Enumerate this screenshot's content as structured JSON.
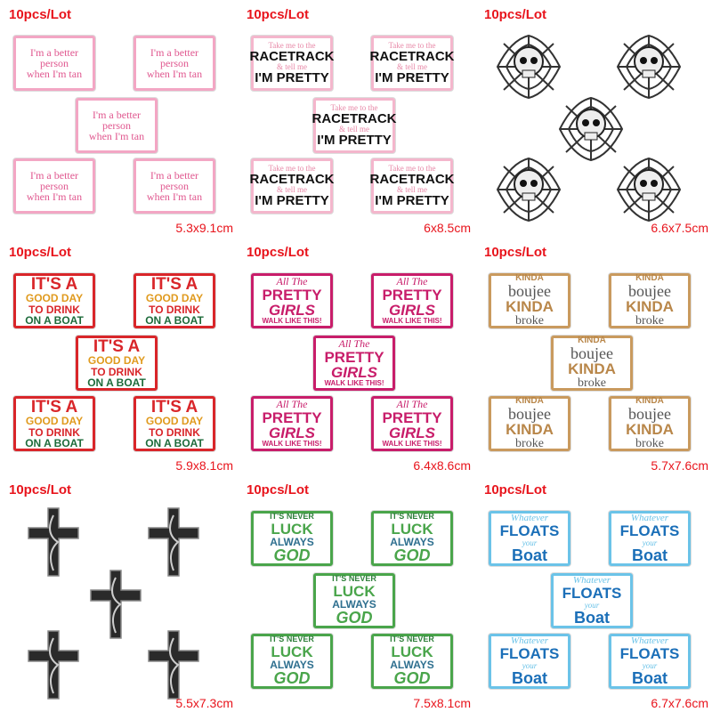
{
  "cells": [
    {
      "lot": "10pcs/Lot",
      "size": "5.3x9.1cm",
      "kind": "text",
      "border": "#f3a6c4",
      "lines": [
        {
          "t": "I'm a better",
          "c": "#e0578f",
          "s": 12
        },
        {
          "t": "person",
          "c": "#e0578f",
          "s": 12
        },
        {
          "t": "when I'm tan",
          "c": "#e0578f",
          "s": 12
        }
      ]
    },
    {
      "lot": "10pcs/Lot",
      "size": "6x8.5cm",
      "kind": "text",
      "border": "#f4b6cc",
      "lines": [
        {
          "t": "Take me to the",
          "c": "#e889a8",
          "s": 9
        },
        {
          "t": "RACETRACK",
          "c": "#111111",
          "s": 15,
          "b": 1
        },
        {
          "t": "& tell me",
          "c": "#e889a8",
          "s": 9
        },
        {
          "t": "I'M PRETTY",
          "c": "#111111",
          "s": 15,
          "b": 1
        }
      ]
    },
    {
      "lot": "10pcs/Lot",
      "size": "6.6x7.5cm",
      "kind": "skull",
      "icon": "skull-spiderweb"
    },
    {
      "lot": "10pcs/Lot",
      "size": "5.9x8.1cm",
      "kind": "text",
      "border": "#d9262a",
      "lines": [
        {
          "t": "IT'S A",
          "c": "#d9262a",
          "s": 19,
          "b": 1
        },
        {
          "t": "GOOD DAY",
          "c": "#e09a1e",
          "s": 12,
          "b": 1
        },
        {
          "t": "TO DRINK",
          "c": "#d9262a",
          "s": 12,
          "b": 1
        },
        {
          "t": "ON A BOAT",
          "c": "#1d6b3a",
          "s": 12,
          "b": 1
        }
      ]
    },
    {
      "lot": "10pcs/Lot",
      "size": "6.4x8.6cm",
      "kind": "text",
      "border": "#c81d6a",
      "lines": [
        {
          "t": "All The",
          "c": "#c81d6a",
          "s": 12,
          "i": 1
        },
        {
          "t": "PRETTY",
          "c": "#c81d6a",
          "s": 17,
          "b": 1
        },
        {
          "t": "GIRLS",
          "c": "#c81d6a",
          "s": 17,
          "b": 1,
          "i": 1
        },
        {
          "t": "WALK LIKE THIS!",
          "c": "#c81d6a",
          "s": 8,
          "b": 1
        }
      ]
    },
    {
      "lot": "10pcs/Lot",
      "size": "5.7x7.6cm",
      "kind": "text",
      "border": "#c99a5e",
      "lines": [
        {
          "t": "KINDA",
          "c": "#b9874a",
          "s": 10,
          "b": 1
        },
        {
          "t": "boujee",
          "c": "#555555",
          "s": 18
        },
        {
          "t": "KINDA",
          "c": "#b9874a",
          "s": 17,
          "b": 1
        },
        {
          "t": "broke",
          "c": "#555555",
          "s": 14
        }
      ]
    },
    {
      "lot": "10pcs/Lot",
      "size": "5.5x7.3cm",
      "kind": "cross",
      "icon": "gothic-cross"
    },
    {
      "lot": "10pcs/Lot",
      "size": "7.5x8.1cm",
      "kind": "text",
      "border": "#4aa54b",
      "lines": [
        {
          "t": "IT'S NEVER",
          "c": "#2e7f3a",
          "s": 9,
          "b": 1
        },
        {
          "t": "LUCK",
          "c": "#4aa54b",
          "s": 17,
          "b": 1
        },
        {
          "t": "ALWAYS",
          "c": "#2e6f8f",
          "s": 12,
          "b": 1
        },
        {
          "t": "GOD",
          "c": "#4aa54b",
          "s": 18,
          "b": 1,
          "i": 1
        }
      ]
    },
    {
      "lot": "10pcs/Lot",
      "size": "6.7x7.6cm",
      "kind": "text",
      "border": "#6bc3e8",
      "lines": [
        {
          "t": "Whatever",
          "c": "#6bc3e8",
          "s": 11,
          "i": 1
        },
        {
          "t": "FLOATS",
          "c": "#1b6fb8",
          "s": 17,
          "b": 1
        },
        {
          "t": "your",
          "c": "#6bc3e8",
          "s": 9,
          "i": 1
        },
        {
          "t": "Boat",
          "c": "#1b6fb8",
          "s": 18,
          "b": 1
        }
      ]
    }
  ],
  "colors": {
    "label": "#e8141c"
  }
}
